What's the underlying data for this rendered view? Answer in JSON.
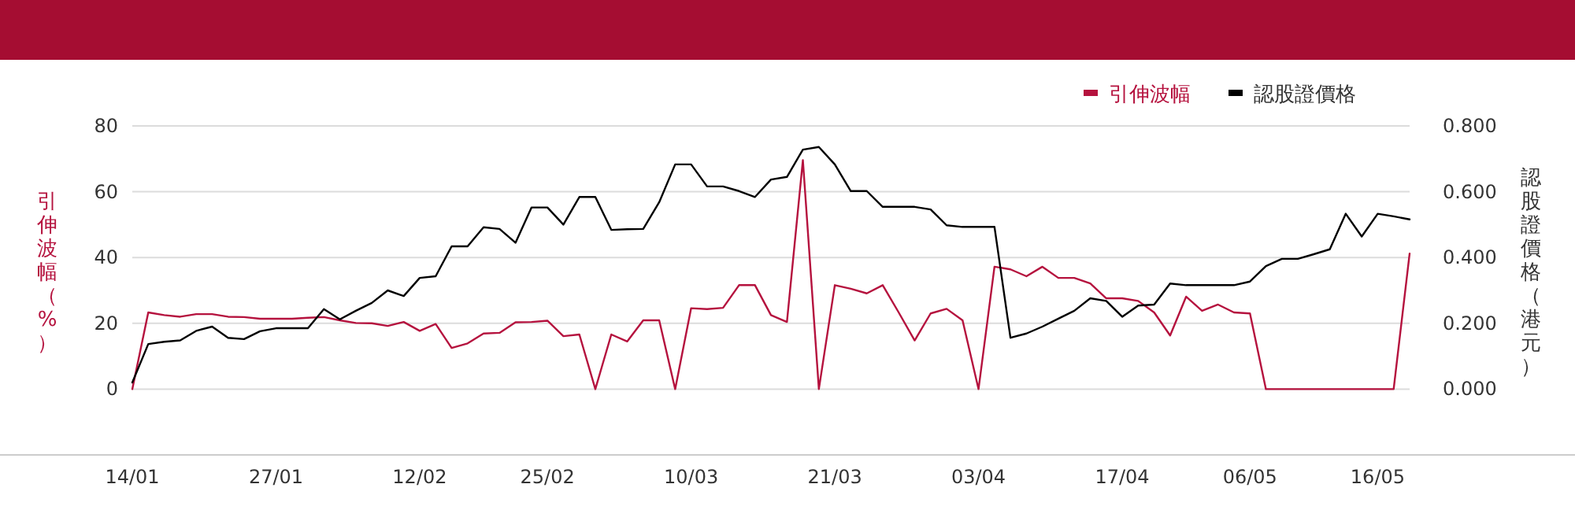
{
  "chart_data": {
    "type": "line",
    "categories": [
      "14/01",
      null,
      null,
      null,
      null,
      null,
      null,
      null,
      null,
      "27/01",
      null,
      null,
      null,
      null,
      null,
      null,
      null,
      null,
      "12/02",
      null,
      null,
      null,
      null,
      null,
      null,
      null,
      "25/02",
      null,
      null,
      null,
      null,
      null,
      null,
      null,
      null,
      "10/03",
      null,
      null,
      null,
      null,
      null,
      null,
      null,
      null,
      "21/03",
      null,
      null,
      null,
      null,
      null,
      null,
      null,
      null,
      "03/04",
      null,
      null,
      null,
      null,
      null,
      null,
      null,
      null,
      "17/04",
      null,
      null,
      null,
      null,
      null,
      null,
      null,
      "06/05",
      null,
      null,
      null,
      null,
      null,
      null,
      null,
      "16/05",
      null,
      null
    ],
    "series": [
      {
        "name": "引伸波幅",
        "color": "#b5123e",
        "values": [
          0,
          23.3,
          22.5,
          22.0,
          22.8,
          22.8,
          22.0,
          21.9,
          21.4,
          21.4,
          21.4,
          21.7,
          21.9,
          20.9,
          20.1,
          20.0,
          19.2,
          20.4,
          17.7,
          19.8,
          12.5,
          13.9,
          16.9,
          17.1,
          20.3,
          20.4,
          20.8,
          16.1,
          16.6,
          0,
          16.6,
          14.5,
          20.9,
          20.9,
          0,
          24.6,
          24.3,
          24.7,
          31.6,
          31.6,
          22.5,
          20.4,
          69.6,
          0,
          31.6,
          30.5,
          29.1,
          31.6,
          23.3,
          14.8,
          23.0,
          24.4,
          20.9,
          0,
          37.2,
          36.4,
          34.3,
          37.2,
          33.8,
          33.8,
          32.1,
          27.6,
          27.6,
          26.8,
          23.3,
          16.3,
          28.1,
          23.8,
          25.7,
          23.3,
          23.0,
          0,
          0,
          0,
          0,
          0,
          0,
          0,
          0,
          0,
          41.2
        ]
      },
      {
        "name": "認股證價格",
        "color": "#000000",
        "axis": "y2",
        "values": [
          0.02,
          0.137,
          0.144,
          0.148,
          0.177,
          0.19,
          0.156,
          0.152,
          0.176,
          0.185,
          0.185,
          0.185,
          0.243,
          0.212,
          0.238,
          0.262,
          0.3,
          0.283,
          0.338,
          0.343,
          0.434,
          0.434,
          0.492,
          0.487,
          0.445,
          0.552,
          0.552,
          0.5,
          0.584,
          0.584,
          0.484,
          0.486,
          0.487,
          0.568,
          0.683,
          0.683,
          0.616,
          0.616,
          0.602,
          0.584,
          0.637,
          0.645,
          0.728,
          0.736,
          0.683,
          0.602,
          0.602,
          0.554,
          0.554,
          0.554,
          0.546,
          0.498,
          0.493,
          0.493,
          0.493,
          0.156,
          0.169,
          0.19,
          0.214,
          0.238,
          0.276,
          0.268,
          0.22,
          0.254,
          0.257,
          0.321,
          0.316,
          0.316,
          0.316,
          0.316,
          0.327,
          0.374,
          0.396,
          0.396,
          0.41,
          0.425,
          0.533,
          0.464,
          0.533,
          0.525,
          0.516
        ]
      }
    ],
    "ylabel": "引伸波幅（%）",
    "y2label": "認股證價格（港元）",
    "ylim": [
      -20,
      80
    ],
    "yticks": [
      0,
      20,
      40,
      60,
      80
    ],
    "y2lim": [
      -0.2,
      0.8
    ],
    "y2ticks": [
      {
        "value": 0,
        "label": "0.000"
      },
      {
        "value": 0.2,
        "label": "0.200"
      },
      {
        "value": 0.4,
        "label": "0.400"
      },
      {
        "value": 0.6,
        "label": "0.600"
      },
      {
        "value": 0.8,
        "label": "0.800"
      }
    ],
    "grid": "y",
    "legend": "top right",
    "marker": "none",
    "line_style": "solid"
  }
}
